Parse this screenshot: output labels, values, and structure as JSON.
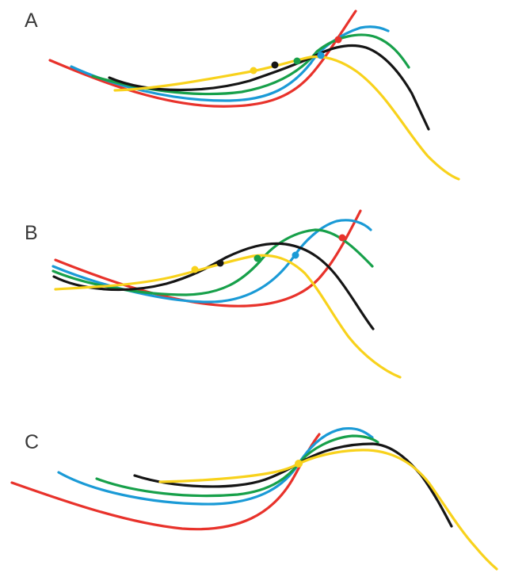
{
  "colors": {
    "red": "#e8322b",
    "blue": "#1a9ad6",
    "green": "#17a04a",
    "black": "#151515",
    "yellow": "#f8d21c"
  },
  "panels": [
    {
      "id": "A",
      "label": "A"
    },
    {
      "id": "B",
      "label": "B"
    },
    {
      "id": "C",
      "label": "C"
    }
  ]
}
